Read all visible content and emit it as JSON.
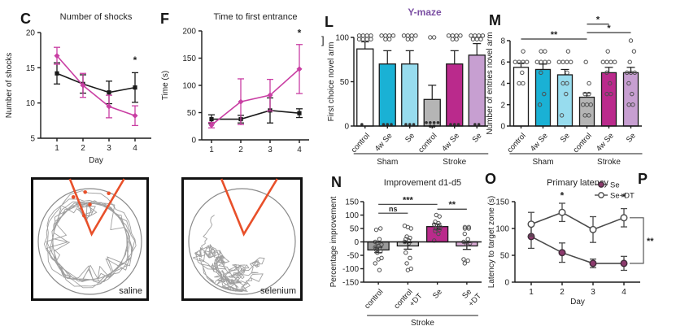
{
  "figure": {
    "panel_letters": [
      "C",
      "F",
      "L",
      "M",
      "N",
      "O",
      "P"
    ],
    "section_title": "Y-maze",
    "section_title_color": "#7b4fa3"
  },
  "colors": {
    "black_line": "#1a1a1a",
    "magenta_line": "#c93ea3",
    "teal_bar": "#1ab1d5",
    "light_blue_bar": "#97dcee",
    "gray_bar": "#b5b5b5",
    "magenta_bar": "#ba2a8c",
    "light_purple_bar": "#c79fd1",
    "control_gray_bar": "#9a9a9a",
    "control_dt_bar": "#c8c8c8",
    "se_dt_bar": "#d9abd4",
    "orange_zone": "#e8502a",
    "o_line": "#4a4a4a",
    "se_marker_fill": "#8c3a6d"
  },
  "chart_data": [
    {
      "id": "C",
      "type": "line",
      "title": "Number of shocks",
      "ylabel": "Number of shocks",
      "xlabel": "Day",
      "x": [
        1,
        2,
        3,
        4
      ],
      "ylim": [
        5,
        20
      ],
      "yticks": [
        5,
        10,
        15,
        20
      ],
      "series": [
        {
          "color": "#1a1a1a",
          "marker": "square",
          "values": [
            14.2,
            12.7,
            11.5,
            12.2
          ],
          "errors": [
            1.5,
            1.3,
            1.6,
            2.1
          ]
        },
        {
          "color": "#c93ea3",
          "marker": "diamond",
          "values": [
            16.7,
            12.5,
            9.5,
            8.2
          ],
          "errors": [
            1.2,
            1.7,
            1.6,
            1.4
          ]
        }
      ],
      "annotations": [
        {
          "text": "*",
          "x": 4,
          "y": 15.6
        }
      ]
    },
    {
      "id": "F",
      "type": "line",
      "title": "Time to first entrance",
      "ylabel": "Time (s)",
      "xlabel": "",
      "x": [
        1,
        2,
        3,
        4
      ],
      "ylim": [
        0,
        200
      ],
      "yticks": [
        0,
        50,
        100,
        150,
        200
      ],
      "series": [
        {
          "color": "#1a1a1a",
          "marker": "square",
          "values": [
            38,
            38,
            54,
            49
          ],
          "errors": [
            8,
            7,
            23,
            8
          ]
        },
        {
          "color": "#c93ea3",
          "marker": "diamond",
          "values": [
            27,
            70,
            82,
            130
          ],
          "errors": [
            5,
            42,
            29,
            45
          ]
        }
      ],
      "annotations": [
        {
          "text": "*",
          "x": 4,
          "y": 190
        }
      ]
    },
    {
      "id": "L",
      "type": "bar",
      "title": "",
      "ylabel": "First choice novel arm",
      "ylim": [
        0,
        100
      ],
      "yticks": [
        0,
        50,
        100
      ],
      "axis_bracket": "]",
      "categories": [
        "control",
        "4w Se",
        "Se",
        "control",
        "4w Se",
        "Se"
      ],
      "values": [
        87,
        70,
        70,
        30,
        70,
        80
      ],
      "errors": [
        8,
        15,
        15,
        16,
        15,
        13
      ],
      "error_up_only": true,
      "bar_colors": [
        "#ffffff",
        "#1ab1d5",
        "#97dcee",
        "#b5b5b5",
        "#ba2a8c",
        "#c79fd1"
      ],
      "scatter": [
        [
          100,
          100,
          100,
          100,
          100,
          100,
          100,
          100,
          0
        ],
        [
          100,
          100,
          100,
          100,
          100,
          100,
          0,
          0,
          0
        ],
        [
          100,
          100,
          100,
          100,
          100,
          100,
          0,
          0,
          0
        ],
        [
          100,
          100,
          0,
          0,
          0,
          0,
          0,
          0
        ],
        [
          100,
          100,
          100,
          100,
          100,
          100,
          0,
          0,
          0
        ],
        [
          100,
          100,
          100,
          100,
          100,
          100,
          100,
          0,
          0
        ]
      ],
      "groups": [
        {
          "label": "Sham",
          "from": 0,
          "to": 2
        },
        {
          "label": "Stroke",
          "from": 3,
          "to": 5
        }
      ],
      "sig": []
    },
    {
      "id": "M",
      "type": "bar",
      "title": "",
      "ylabel": "Number of entries novel arm",
      "ylim": [
        0,
        8
      ],
      "yticks": [
        0,
        2,
        4,
        6,
        8
      ],
      "categories": [
        "control",
        "4w Se",
        "Se",
        "control",
        "4w Se",
        "Se"
      ],
      "values": [
        5.5,
        5.3,
        4.8,
        2.7,
        5.0,
        5.0
      ],
      "errors": [
        0.4,
        0.5,
        0.5,
        0.4,
        0.5,
        0.5
      ],
      "error_up_only": true,
      "bar_colors": [
        "#ffffff",
        "#1ab1d5",
        "#97dcee",
        "#b5b5b5",
        "#ba2a8c",
        "#c79fd1"
      ],
      "scatter": [
        [
          7,
          6,
          6,
          6,
          6,
          5,
          4,
          4
        ],
        [
          7,
          7,
          6,
          6,
          6,
          6,
          5,
          3,
          2
        ],
        [
          7,
          6,
          6,
          6,
          6,
          5,
          4,
          4,
          3,
          1
        ],
        [
          6,
          4,
          3,
          3,
          2,
          2,
          2,
          1,
          1
        ],
        [
          7,
          6,
          6,
          6,
          6,
          5,
          4,
          3,
          3
        ],
        [
          8,
          7,
          6,
          5,
          5,
          5,
          4,
          3,
          2,
          2
        ]
      ],
      "groups": [
        {
          "label": "Sham",
          "from": 0,
          "to": 2
        },
        {
          "label": "Stroke",
          "from": 3,
          "to": 5
        }
      ],
      "sig": [
        {
          "from": 0,
          "to": 3,
          "y": 8.15,
          "label": "**"
        },
        {
          "from": 3,
          "to": 4,
          "y": 9.55,
          "label": "*"
        },
        {
          "from": 3,
          "to": 5,
          "y": 8.75,
          "label": "*"
        }
      ]
    },
    {
      "id": "N",
      "type": "bar",
      "title": "Improvement d1-d5",
      "ylabel": "Percentage improvement",
      "ylim": [
        -150,
        150
      ],
      "yticks": [
        -150,
        -100,
        -50,
        0,
        50,
        100,
        150
      ],
      "zero_line": true,
      "categories": [
        "control",
        "control\n+DT",
        "Se",
        "Se\n+DT"
      ],
      "values": [
        -30,
        -15,
        57,
        -15
      ],
      "errors": [
        10,
        12,
        10,
        13
      ],
      "error_up_only": false,
      "bar_colors": [
        "#9a9a9a",
        "#c8c8c8",
        "#ba2a8c",
        "#d9abd4"
      ],
      "scatter": [
        [
          50,
          45,
          10,
          0,
          -5,
          -10,
          -15,
          -20,
          -25,
          -30,
          -35,
          -40,
          -60,
          -65,
          -80,
          -105
        ],
        [
          60,
          55,
          50,
          20,
          15,
          10,
          5,
          0,
          -5,
          -40,
          -60,
          -80,
          -100,
          -105
        ],
        [
          100,
          95,
          75,
          70,
          65,
          60,
          55,
          50,
          45,
          40,
          30,
          5
        ],
        [
          55,
          55,
          50,
          50,
          30,
          10,
          0,
          -5,
          -10,
          -65,
          -70,
          -80
        ]
      ],
      "groups": [
        {
          "label": "Stroke",
          "from": 0,
          "to": 3
        }
      ],
      "sig": [
        {
          "from": 0,
          "to": 1,
          "y": 107,
          "label": "ns"
        },
        {
          "from": 0,
          "to": 2,
          "y": 140,
          "label": "***"
        },
        {
          "from": 2,
          "to": 3,
          "y": 122,
          "label": "**"
        }
      ]
    },
    {
      "id": "O",
      "type": "line",
      "title": "Primary latency",
      "ylabel": "Latency to target zone (s)",
      "xlabel": "Day",
      "x": [
        1,
        2,
        3,
        4
      ],
      "ylim": [
        0,
        150
      ],
      "yticks": [
        0,
        50,
        100,
        150
      ],
      "series": [
        {
          "name": "Se",
          "color": "#4a4a4a",
          "marker": "circle",
          "marker_fill": "#8c3a6d",
          "marker_stroke": "#3f2a38",
          "values": [
            85,
            55,
            35,
            35
          ],
          "errors": [
            22,
            18,
            8,
            13
          ]
        },
        {
          "name": "Se+DT",
          "color": "#4a4a4a",
          "marker": "circle",
          "marker_fill": "#ffffff",
          "marker_stroke": "#4a4a4a",
          "values": [
            108,
            130,
            98,
            120
          ],
          "errors": [
            22,
            17,
            24,
            17
          ]
        }
      ],
      "legend": true,
      "annotations": [
        {
          "text": "*",
          "x": 2,
          "y": 155
        },
        {
          "text": "*",
          "x": 4,
          "y": 152
        }
      ],
      "bracket": {
        "x": 4,
        "y1": 120,
        "y2": 35,
        "label": "**"
      }
    }
  ],
  "mazes": [
    {
      "label": "saline",
      "pattern": "perimeter",
      "marks": [
        [
          0.36,
          0.16
        ],
        [
          0.46,
          0.12
        ],
        [
          0.5,
          0.22
        ],
        [
          0.45,
          0.31
        ],
        [
          0.66,
          0.13
        ]
      ]
    },
    {
      "label": "selenium",
      "pattern": "bottom",
      "marks": []
    }
  ]
}
